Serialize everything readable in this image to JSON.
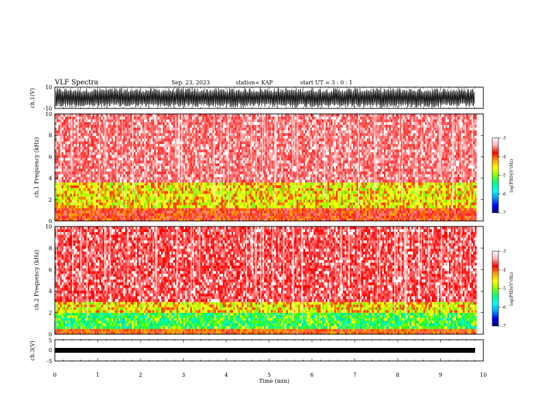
{
  "header": {
    "title": "VLF Spectra",
    "date": "Sep. 23, 2023",
    "station": "station= KAP",
    "start": "start  UT =   3 : 0  : 1"
  },
  "colors": {
    "spectrogram_scale": [
      "#000080",
      "#0000ff",
      "#00a0ff",
      "#00ffff",
      "#00ff80",
      "#80ff00",
      "#ffff00",
      "#ffa000",
      "#ff0000",
      "#ffb0b0",
      "#ffffff"
    ],
    "trace": "#000000"
  },
  "chart_data": [
    {
      "type": "line",
      "panel": "ch1-waveform",
      "ylabel": "ch.1(V)",
      "ylim": [
        -10,
        10
      ],
      "yticks": [
        "10",
        "-10"
      ],
      "xlim": [
        0,
        10
      ],
      "description_of_data": "dense noise waveform spanning most of the range through 9.8 min"
    },
    {
      "type": "heatmap",
      "panel": "ch1-spectrogram",
      "ylabel": "ch.1 Frequency (kHz)",
      "ylim": [
        0,
        10
      ],
      "yticks": [
        "10",
        "8",
        "6",
        "4",
        "2",
        "0"
      ],
      "xlim": [
        0,
        10
      ],
      "data_end_min": 9.8,
      "bands": [
        {
          "fmin": 0,
          "fmax": 1.2,
          "level": "orange-red"
        },
        {
          "fmin": 1.2,
          "fmax": 3.6,
          "level": "yellow-green"
        },
        {
          "fmin": 3.6,
          "fmax": 10,
          "level": "red-pink"
        }
      ],
      "colorbar": {
        "ticks": [
          "-3",
          "-4",
          "-5",
          "-6",
          "-7"
        ],
        "label": "log(PSD)(V²/Hz)",
        "range": [
          -7,
          -3
        ]
      }
    },
    {
      "type": "heatmap",
      "panel": "ch2-spectrogram",
      "ylabel": "ch.2 Frequency (kHz)",
      "ylim": [
        0,
        10
      ],
      "yticks": [
        "10",
        "8",
        "6",
        "4",
        "2",
        "0"
      ],
      "xlim": [
        0,
        10
      ],
      "data_end_min": 9.8,
      "bands": [
        {
          "fmin": 0,
          "fmax": 0.5,
          "level": "orange"
        },
        {
          "fmin": 0.5,
          "fmax": 2.0,
          "level": "green-cyan"
        },
        {
          "fmin": 2.0,
          "fmax": 3.0,
          "level": "yellow-green"
        },
        {
          "fmin": 3.0,
          "fmax": 10,
          "level": "red"
        }
      ],
      "colorbar": {
        "ticks": [
          "-3",
          "-4",
          "-5",
          "-6",
          "-7"
        ],
        "label": "log(PSD)(V²/Hz)",
        "range": [
          -7,
          -3
        ]
      }
    },
    {
      "type": "line",
      "panel": "ch3-waveform",
      "ylabel": "ch.3(V)",
      "ylim": [
        -5,
        5
      ],
      "yticks": [
        "5",
        "0",
        "-5"
      ],
      "xlim": [
        0,
        10
      ],
      "xticks": [
        "0",
        "1",
        "2",
        "3",
        "4",
        "5",
        "6",
        "7",
        "8",
        "9",
        "10"
      ],
      "xlabel": "Time (min)",
      "description_of_data": "narrow band around -1 V through 9.8 min"
    }
  ]
}
